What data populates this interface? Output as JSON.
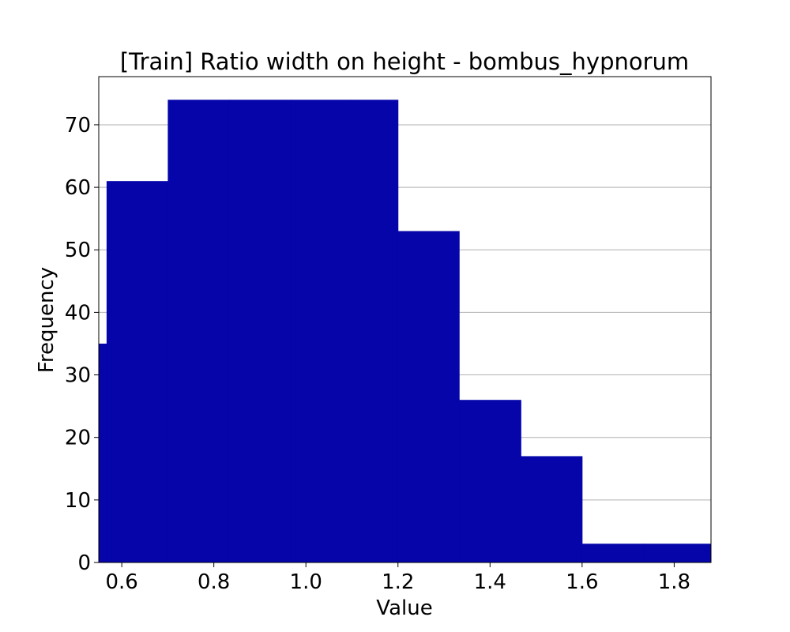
{
  "chart_data": {
    "type": "bar",
    "title": "[Train] Ratio width on height - bombus_hypnorum",
    "xlabel": "Value",
    "ylabel": "Frequency",
    "xlim": [
      0.55,
      1.88
    ],
    "ylim": [
      0,
      77.7
    ],
    "grid": "y",
    "bar_color": "#0505aa",
    "bins": [
      {
        "x0": 0.5,
        "x1": 0.567,
        "count": 35
      },
      {
        "x0": 0.567,
        "x1": 0.7,
        "count": 61
      },
      {
        "x0": 0.7,
        "x1": 0.833,
        "count": 74
      },
      {
        "x0": 0.833,
        "x1": 0.967,
        "count": 74
      },
      {
        "x0": 0.967,
        "x1": 1.1,
        "count": 74
      },
      {
        "x0": 1.1,
        "x1": 1.2,
        "count": 74
      },
      {
        "x0": 1.2,
        "x1": 1.333,
        "count": 53
      },
      {
        "x0": 1.333,
        "x1": 1.467,
        "count": 26
      },
      {
        "x0": 1.467,
        "x1": 1.6,
        "count": 17
      },
      {
        "x0": 1.6,
        "x1": 1.733,
        "count": 3
      },
      {
        "x0": 1.733,
        "x1": 1.88,
        "count": 3
      }
    ],
    "xticks": [
      "0.6",
      "0.8",
      "1.0",
      "1.2",
      "1.4",
      "1.6",
      "1.8"
    ],
    "yticks": [
      "0",
      "10",
      "20",
      "30",
      "40",
      "50",
      "60",
      "70"
    ]
  }
}
